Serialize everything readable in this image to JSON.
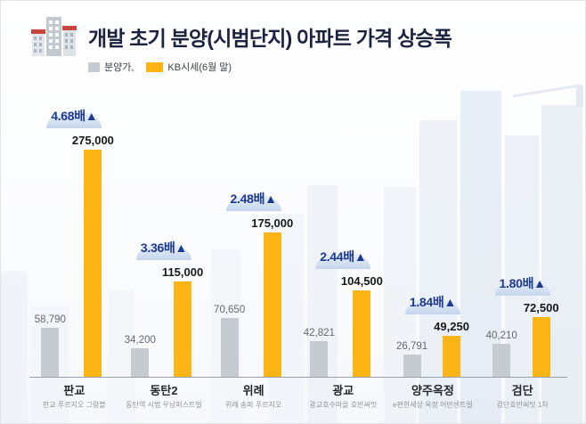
{
  "header": {
    "title": "개발 초기 분양(시범단지) 아파트 가격 상승폭"
  },
  "legend": {
    "items": [
      {
        "label": "분양가,",
        "color": "#c6cbd1"
      },
      {
        "label": "KB시세(6월 말)",
        "color": "#fcb514"
      }
    ]
  },
  "chart_data": {
    "type": "bar",
    "title": "개발 초기 분양(시범단지) 아파트 가격 상승폭",
    "series": [
      {
        "name": "분양가",
        "color": "#c6cbd1"
      },
      {
        "name": "KB시세(6월 말)",
        "color": "#fcb514"
      }
    ],
    "categories": [
      "판교",
      "동탄2",
      "위례",
      "광교",
      "양주옥정",
      "검단"
    ],
    "ylim": [
      0,
      275000
    ],
    "grid": false,
    "legend_position": "top-left",
    "groups": [
      {
        "name": "판교",
        "subtitle": "판교 푸르지오 그랑블",
        "ratio_label": "4.68배▲",
        "bunyang_value": 58790,
        "bunyang_label": "58,790",
        "kb_value": 275000,
        "kb_label": "275,000"
      },
      {
        "name": "동탄2",
        "subtitle": "동탄역 시범 우남퍼스트빌",
        "ratio_label": "3.36배▲",
        "bunyang_value": 34200,
        "bunyang_label": "34,200",
        "kb_value": 115000,
        "kb_label": "115,000"
      },
      {
        "name": "위례",
        "subtitle": "위례 송파 푸르지오",
        "ratio_label": "2.48배▲",
        "bunyang_value": 70650,
        "bunyang_label": "70,650",
        "kb_value": 175000,
        "kb_label": "175,000"
      },
      {
        "name": "광교",
        "subtitle": "광교호수마을 호반써밋",
        "ratio_label": "2.44배▲",
        "bunyang_value": 42821,
        "bunyang_label": "42,821",
        "kb_value": 104500,
        "kb_label": "104,500"
      },
      {
        "name": "양주옥정",
        "subtitle": "e편한세상 옥정 어반센트럴",
        "ratio_label": "1.84배▲",
        "bunyang_value": 26791,
        "bunyang_label": "26,791",
        "kb_value": 49250,
        "kb_label": "49,250"
      },
      {
        "name": "검단",
        "subtitle": "검단호반써밋 1차",
        "ratio_label": "1.80배▲",
        "bunyang_value": 40210,
        "bunyang_label": "40,210",
        "kb_value": 72500,
        "kb_label": "72,500"
      }
    ]
  }
}
